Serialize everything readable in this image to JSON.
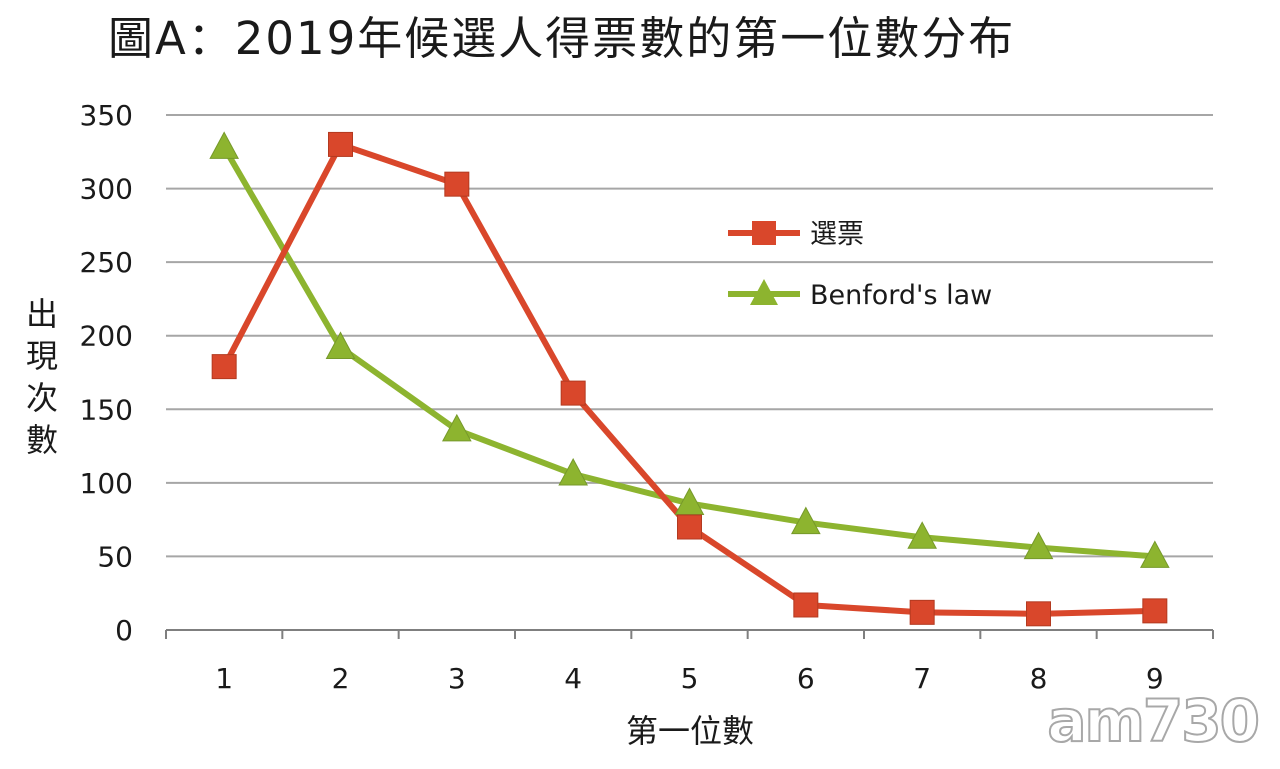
{
  "chart_data": {
    "type": "line",
    "title": "圖A：2019年候選人得票數的第一位數分布",
    "xlabel": "第一位數",
    "ylabel": "出現次數",
    "categories": [
      "1",
      "2",
      "3",
      "4",
      "5",
      "6",
      "7",
      "8",
      "9"
    ],
    "ylim": [
      0,
      350
    ],
    "yticks": [
      0,
      50,
      100,
      150,
      200,
      250,
      300,
      350
    ],
    "grid": "horizontal",
    "legend_position": "right",
    "series": [
      {
        "name": "選票",
        "values": [
          179,
          330,
          303,
          161,
          70,
          17,
          12,
          11,
          13
        ],
        "color": "#d9472b",
        "marker": "square"
      },
      {
        "name": "Benford's law",
        "values": [
          328,
          192,
          136,
          106,
          86,
          73,
          63,
          56,
          50
        ],
        "color": "#8db42f",
        "marker": "triangle"
      }
    ]
  },
  "watermark": "am730"
}
